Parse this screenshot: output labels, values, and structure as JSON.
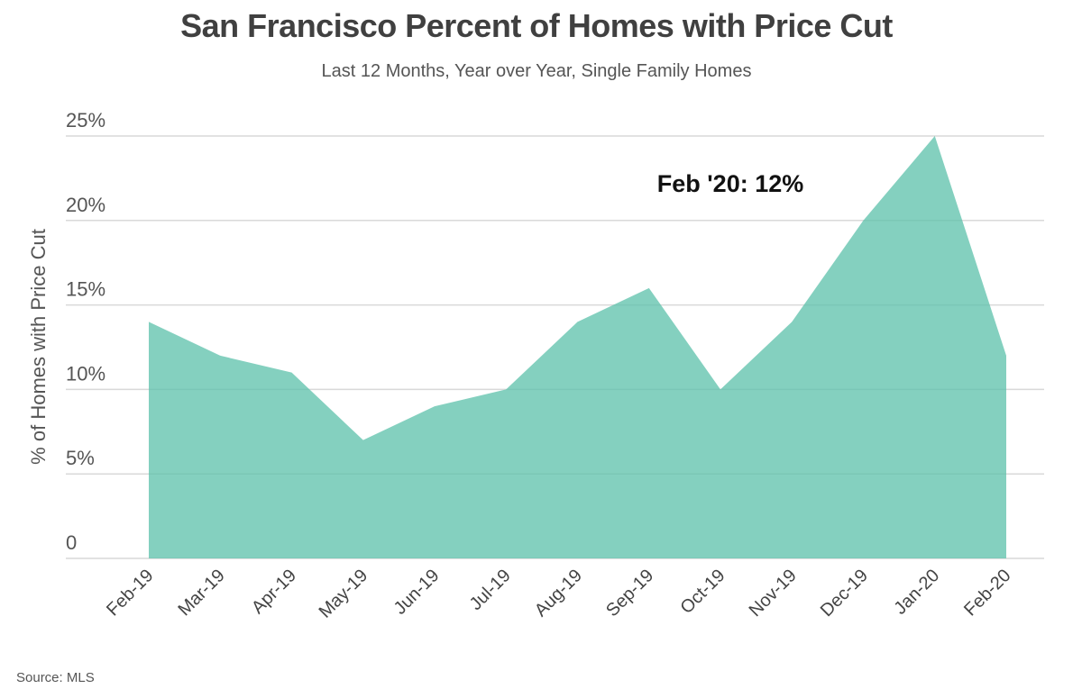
{
  "chart_data": {
    "type": "area",
    "title": "San Francisco Percent of Homes with Price Cut",
    "subtitle": "Last 12 Months, Year over Year, Single Family Homes",
    "ylabel": "% of Homes with Price Cut",
    "xlabel": "",
    "categories": [
      "Feb-19",
      "Mar-19",
      "Apr-19",
      "May-19",
      "Jun-19",
      "Jul-19",
      "Aug-19",
      "Sep-19",
      "Oct-19",
      "Nov-19",
      "Dec-19",
      "Jan-20",
      "Feb-20"
    ],
    "values": [
      14,
      12,
      11,
      7,
      9,
      10,
      14,
      16,
      10,
      14,
      20,
      25,
      12
    ],
    "ylim": [
      0,
      25
    ],
    "yticks": [
      0,
      5,
      10,
      15,
      20,
      25
    ],
    "ytick_labels": [
      "0",
      "5%",
      "10%",
      "15%",
      "20%",
      "25%"
    ],
    "grid": true,
    "legend": "none",
    "annotation": "Feb '20: 12%",
    "source": "Source:  MLS",
    "colors": {
      "area": "#5BC0AA",
      "grid": "#d9d9d9"
    }
  }
}
